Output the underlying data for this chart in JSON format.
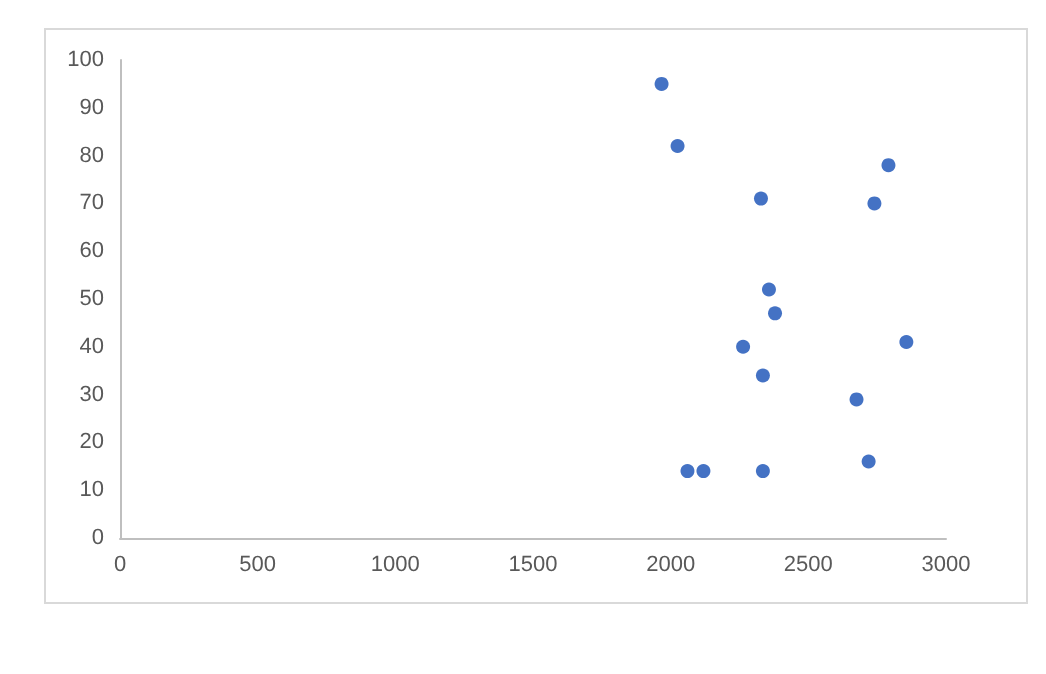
{
  "chart_data": {
    "type": "scatter",
    "x": [
      1967,
      2025,
      2328,
      2791,
      2740,
      2357,
      2379,
      2263,
      2856,
      2335,
      2675,
      2719,
      2061,
      2119,
      2335
    ],
    "values": [
      95,
      82,
      71,
      78,
      70,
      52,
      47,
      40,
      41,
      34,
      29,
      16,
      14,
      14,
      14
    ],
    "color": "#4472c4",
    "marker": "circle",
    "xlim": [
      0,
      3000
    ],
    "xticks": [
      0,
      500,
      1000,
      1500,
      2000,
      2500,
      3000
    ],
    "ylim": [
      0,
      100
    ],
    "yticks": [
      0,
      10,
      20,
      30,
      40,
      50,
      60,
      70,
      80,
      90,
      100
    ]
  }
}
